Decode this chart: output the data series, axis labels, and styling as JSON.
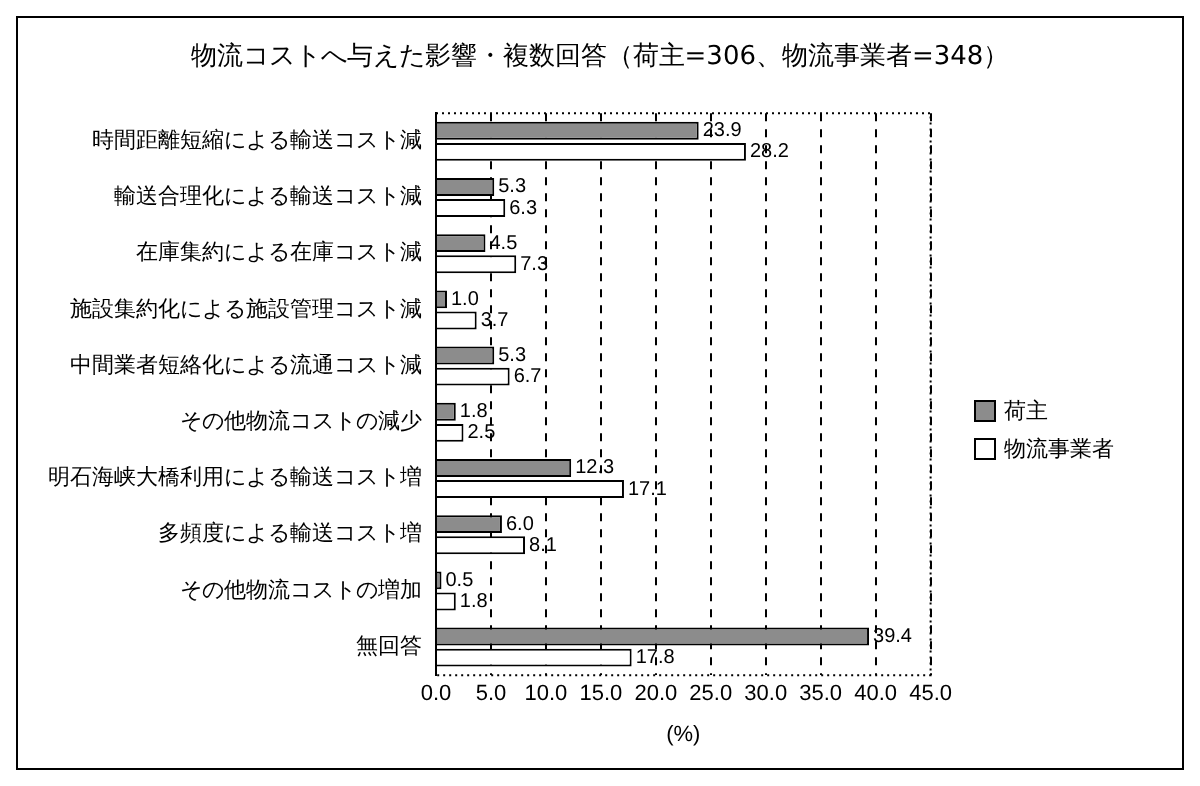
{
  "chart_data": {
    "type": "bar",
    "orientation": "horizontal",
    "title": "物流コストへ与えた影響・複数回答（荷主=306、物流事業者=348）",
    "xlabel": "(%)",
    "categories": [
      "時間距離短縮による輸送コスト減",
      "輸送合理化による輸送コスト減",
      "在庫集約による在庫コスト減",
      "施設集約化による施設管理コスト減",
      "中間業者短絡化による流通コスト減",
      "その他物流コストの減少",
      "明石海峡大橋利用による輸送コスト増",
      "多頻度による輸送コスト増",
      "その他物流コストの増加",
      "無回答"
    ],
    "series": [
      {
        "name": "荷主",
        "color": "#8c8c8c",
        "values": [
          23.9,
          5.3,
          4.5,
          1.0,
          5.3,
          1.8,
          12.3,
          6.0,
          0.5,
          39.4
        ],
        "value_labels": [
          "23.9",
          "5.3",
          "4.5",
          "1.0",
          "5.3",
          "1.8",
          "12.3",
          "6.0",
          "0.5",
          "39.4"
        ]
      },
      {
        "name": "物流事業者",
        "color": "#ffffff",
        "values": [
          28.2,
          6.3,
          7.3,
          3.7,
          6.7,
          2.5,
          17.1,
          8.1,
          1.8,
          17.8
        ],
        "value_labels": [
          "28.2",
          "6.3",
          "7.3",
          "3.7",
          "6.7",
          "2.5",
          "17.1",
          "8.1",
          "1.8",
          "17.8"
        ]
      }
    ],
    "xlim": [
      0,
      45
    ],
    "xticks": [
      {
        "value": 0,
        "label": "0.0"
      },
      {
        "value": 5,
        "label": "5.0"
      },
      {
        "value": 10,
        "label": "10.0"
      },
      {
        "value": 15,
        "label": "15.0"
      },
      {
        "value": 20,
        "label": "20.0"
      },
      {
        "value": 25,
        "label": "25.0"
      },
      {
        "value": 30,
        "label": "30.0"
      },
      {
        "value": 35,
        "label": "35.0"
      },
      {
        "value": 40,
        "label": "40.0"
      },
      {
        "value": 45,
        "label": "45.0"
      }
    ],
    "grid": "x",
    "legend": "right"
  }
}
